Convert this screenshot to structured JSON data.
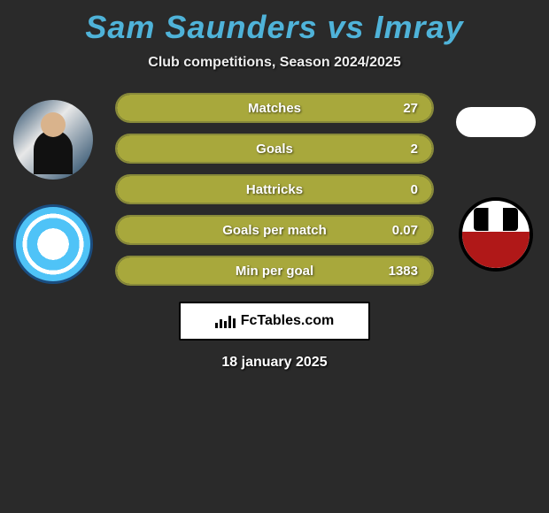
{
  "title": {
    "text": "Sam Saunders vs Imray",
    "color": "#4fb3d9",
    "fontsize": 36
  },
  "subtitle": "Club competitions, Season 2024/2025",
  "stats": [
    {
      "label": "Matches",
      "value": "27",
      "fill_pct": 100
    },
    {
      "label": "Goals",
      "value": "2",
      "fill_pct": 100
    },
    {
      "label": "Hattricks",
      "value": "0",
      "fill_pct": 100
    },
    {
      "label": "Goals per match",
      "value": "0.07",
      "fill_pct": 100
    },
    {
      "label": "Min per goal",
      "value": "1383",
      "fill_pct": 100
    }
  ],
  "pill_style": {
    "fill_color": "#a8a83c",
    "border_color": "#888a3a",
    "text_color": "#ffffff"
  },
  "footer_brand": "FcTables.com",
  "date": "18 january 2025",
  "colors": {
    "background": "#2a2a2a",
    "title": "#4fb3d9"
  },
  "left_avatars": [
    {
      "name": "player-photo",
      "type": "player"
    },
    {
      "name": "colchester-badge",
      "type": "badge-blue-white"
    }
  ],
  "right_avatars": [
    {
      "name": "player-blank",
      "type": "blank-oval"
    },
    {
      "name": "bromley-badge",
      "type": "badge-red-black"
    }
  ]
}
